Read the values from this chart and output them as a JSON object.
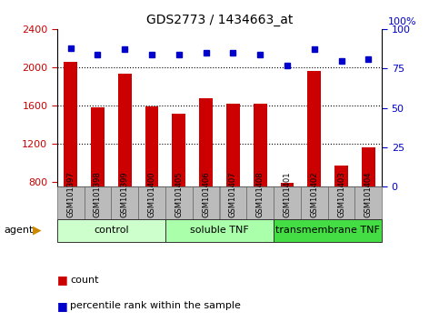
{
  "title": "GDS2773 / 1434663_at",
  "samples": [
    "GSM101397",
    "GSM101398",
    "GSM101399",
    "GSM101400",
    "GSM101405",
    "GSM101406",
    "GSM101407",
    "GSM101408",
    "GSM101401",
    "GSM101402",
    "GSM101403",
    "GSM101404"
  ],
  "counts": [
    2060,
    1580,
    1930,
    1590,
    1510,
    1680,
    1620,
    1620,
    790,
    1960,
    970,
    1160
  ],
  "percentile": [
    88,
    84,
    87,
    84,
    84,
    85,
    85,
    84,
    77,
    87,
    80,
    81
  ],
  "groups": [
    {
      "label": "control",
      "start": 0,
      "end": 4,
      "color": "#ccffcc"
    },
    {
      "label": "soluble TNF",
      "start": 4,
      "end": 8,
      "color": "#aaffaa"
    },
    {
      "label": "transmembrane TNF",
      "start": 8,
      "end": 12,
      "color": "#44dd44"
    }
  ],
  "bar_color": "#cc0000",
  "dot_color": "#0000cc",
  "ylim_left": [
    750,
    2400
  ],
  "ylim_right": [
    0,
    100
  ],
  "yticks_left": [
    800,
    1200,
    1600,
    2000,
    2400
  ],
  "yticks_right": [
    0,
    25,
    50,
    75,
    100
  ],
  "grid_values": [
    1200,
    1600,
    2000
  ],
  "tick_bg_color": "#bbbbbb",
  "bar_width": 0.5,
  "legend_count_label": "count",
  "legend_pct_label": "percentile rank within the sample"
}
